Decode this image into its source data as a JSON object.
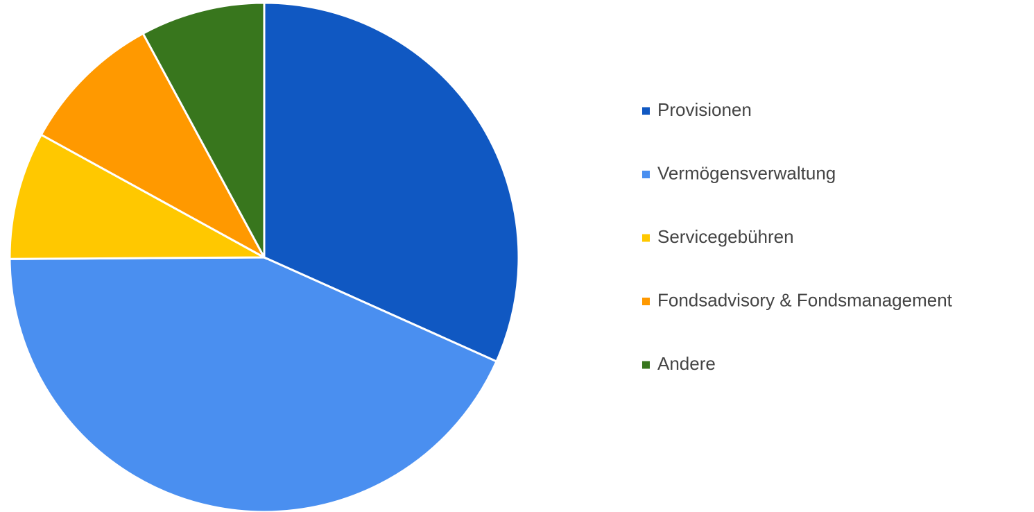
{
  "chart_data": {
    "type": "pie",
    "categories": [
      "Provisionen",
      "Vermögensverwaltung",
      "Servicegebühren",
      "Fondsadvisory & Fondsmanagement",
      "Andere"
    ],
    "values": [
      31.7,
      43.2,
      8.1,
      9.1,
      7.9
    ],
    "colors": [
      "#1058c2",
      "#4a8ff0",
      "#ffc800",
      "#ff9900",
      "#38761d"
    ],
    "legend": "right"
  }
}
